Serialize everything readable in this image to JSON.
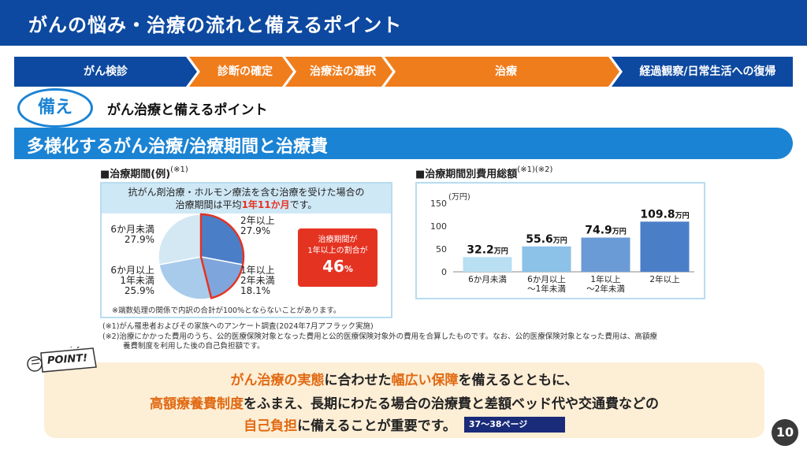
{
  "header": {
    "title": "がんの悩み・治療の流れと備えるポイント"
  },
  "flow": {
    "steps": [
      {
        "label": "がん検診",
        "color": "#0d49a0"
      },
      {
        "label": "診断の確定",
        "color": "#f07d1c"
      },
      {
        "label": "治療法の選択",
        "color": "#f07d1c"
      },
      {
        "label": "治療",
        "color": "#f07d1c"
      },
      {
        "label": "経過観察/日常生活への復帰",
        "color": "#0d49a0"
      }
    ]
  },
  "sonae": {
    "badge": "備え",
    "title": "がん治療と備えるポイント"
  },
  "section": {
    "title": "多様化するがん治療/治療期間と治療費"
  },
  "period_panel": {
    "heading": "■治療期間(例)",
    "heading_note": "(※1)",
    "box_line1": "抗がん剤治療・ホルモン療法を含む治療を受けた場合の",
    "box_line2_pre": "治療期間は平均",
    "box_line2_highlight": "1年11か月",
    "box_line2_post": "です。",
    "callout_line1": "治療期間が",
    "callout_line2": "1年以上の割合が",
    "callout_value": "46",
    "callout_unit": "%",
    "note": "※端数処理の関係で内訳の合計が100%とならないことがあります。"
  },
  "cost_panel": {
    "heading": "■治療期間別費用総額",
    "heading_note": "(※1)(※2)"
  },
  "chart_data": [
    {
      "type": "pie",
      "slices": [
        {
          "label_lines": [
            "2年以上",
            "27.9%"
          ],
          "value": 27.9,
          "color": "#4a7fc8"
        },
        {
          "label_lines": [
            "1年以上",
            "2年未満",
            "18.1%"
          ],
          "value": 18.1,
          "color": "#7fa6dc"
        },
        {
          "label_lines": [
            "6か月以上",
            "1年未満",
            "25.9%"
          ],
          "value": 25.9,
          "color": "#a8cbec"
        },
        {
          "label_lines": [
            "6か月未満",
            "27.9%"
          ],
          "value": 27.9,
          "color": "#d3e8f3"
        }
      ],
      "highlight_outline": "#e53322"
    },
    {
      "type": "bar",
      "ylabel": "(万円)",
      "ylim": [
        0,
        150
      ],
      "yticks": [
        "0",
        "50",
        "100",
        "150"
      ],
      "categories": [
        {
          "lines": [
            "6か月未満"
          ]
        },
        {
          "lines": [
            "6か月以上",
            "〜1年未満"
          ]
        },
        {
          "lines": [
            "1年以上",
            "〜2年未満"
          ]
        },
        {
          "lines": [
            "2年以上"
          ]
        }
      ],
      "values": [
        32.2,
        55.6,
        74.9,
        109.8
      ],
      "value_labels": [
        {
          "big": "32.2",
          "unit": "万円"
        },
        {
          "big": "55.6",
          "unit": "万円"
        },
        {
          "big": "74.9",
          "unit": "万円"
        },
        {
          "big": "109.8",
          "unit": "万円"
        }
      ],
      "colors": [
        "#b8dff2",
        "#8cc1e8",
        "#6b9bd6",
        "#4a7fc8"
      ]
    }
  ],
  "footnotes": {
    "note1": "(※1)がん罹患者およびその家族へのアンケート調査(2024年7月アフラック実施)",
    "note2_line1": "(※2)治療にかかった費用のうち、公的医療保険対象となった費用と公的医療保険対象外の費用を合算したものです。なお、公的医療保険対象となった費用は、高額療",
    "note2_line2": "養費制度を利用した後の自己負担額です。"
  },
  "point": {
    "badge": "POINT!",
    "line1": {
      "em1": "がん治療の実態",
      "t1": "に合わせた",
      "em2": "幅広い保障",
      "t2": "を備えるとともに、"
    },
    "line2": {
      "em1": "高額療養費制度",
      "t1": "をふまえ、長期にわたる場合の治療費と差額ベッド代や交通費などの"
    },
    "line3": {
      "em1": "自己負担",
      "t1": "に備えることが重要です。"
    },
    "page_ref": "37〜38ページ"
  },
  "page_number": "10"
}
